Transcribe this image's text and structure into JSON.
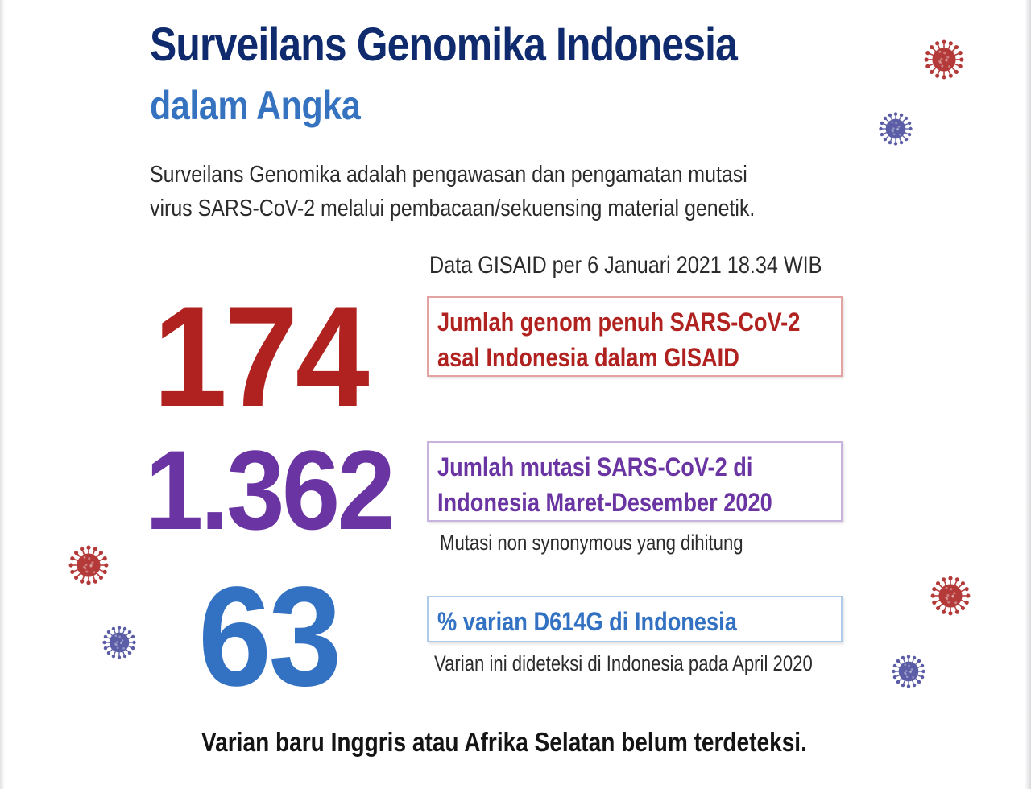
{
  "header": {
    "title": "Surveilans Genomika Indonesia",
    "subtitle": "dalam Angka"
  },
  "description": {
    "line1": "Surveilans Genomika adalah pengawasan dan pengamatan mutasi",
    "line2": "virus SARS-CoV-2 melalui pembacaan/sekuensing material genetik."
  },
  "source_note": "Data GISAID per 6 Januari 2021 18.34 WIB",
  "stats": [
    {
      "value": "174",
      "label_line1": "Jumlah genom penuh SARS-CoV-2",
      "label_line2": "asal Indonesia dalam GISAID",
      "note": "",
      "color": "#b0221f"
    },
    {
      "value": "1.362",
      "label_line1": "Jumlah mutasi SARS-CoV-2 di",
      "label_line2": "Indonesia Maret-Desember 2020",
      "note": "Mutasi non synonymous yang dihitung",
      "color": "#6a35a2"
    },
    {
      "value": "63",
      "label_line1": "% varian D614G di Indonesia",
      "label_line2": "",
      "note": "Varian ini dideteksi di Indonesia pada April 2020",
      "color": "#3372c2"
    }
  ],
  "footer": "Varian baru Inggris atau Afrika Selatan belum terdeteksi.",
  "decorations": {
    "icon": "virus-icon",
    "colors": [
      "#b43a3a",
      "#5b5ea6"
    ]
  }
}
